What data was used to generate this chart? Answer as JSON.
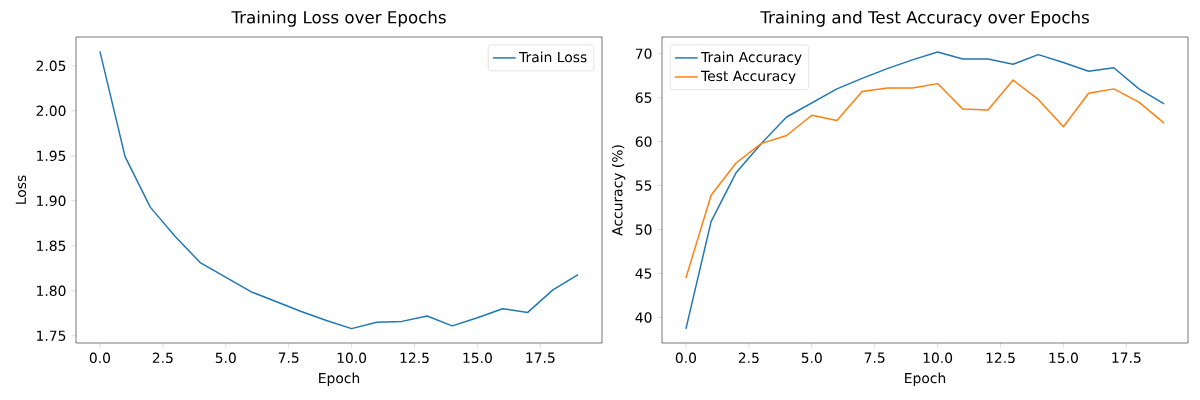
{
  "chart_data": [
    {
      "type": "line",
      "title": "Training Loss over Epochs",
      "xlabel": "Epoch",
      "ylabel": "Loss",
      "x": [
        0,
        1,
        2,
        3,
        4,
        5,
        6,
        7,
        8,
        9,
        10,
        11,
        12,
        13,
        14,
        15,
        16,
        17,
        18,
        19
      ],
      "series": [
        {
          "name": "Train Loss",
          "color": "#1f77b4",
          "values": [
            2.066,
            1.949,
            1.893,
            1.86,
            1.831,
            1.815,
            1.799,
            1.788,
            1.777,
            1.767,
            1.758,
            1.765,
            1.766,
            1.772,
            1.761,
            1.77,
            1.78,
            1.776,
            1.801,
            1.818
          ]
        }
      ],
      "xlim": [
        -0.95,
        19.95
      ],
      "ylim": [
        1.742,
        2.082
      ],
      "xticks": [
        {
          "value": 0,
          "label": "0.0"
        },
        {
          "value": 2.5,
          "label": "2.5"
        },
        {
          "value": 5,
          "label": "5.0"
        },
        {
          "value": 7.5,
          "label": "7.5"
        },
        {
          "value": 10,
          "label": "10.0"
        },
        {
          "value": 12.5,
          "label": "12.5"
        },
        {
          "value": 15,
          "label": "15.0"
        },
        {
          "value": 17.5,
          "label": "17.5"
        }
      ],
      "yticks": [
        1.75,
        {
          "value": 1.8,
          "label": "1.80"
        },
        1.85,
        {
          "value": 1.9,
          "label": "1.90"
        },
        1.95,
        {
          "value": 2.0,
          "label": "2.00"
        },
        2.05
      ],
      "legend": "top right",
      "grid": false
    },
    {
      "type": "line",
      "title": "Training and Test Accuracy over Epochs",
      "xlabel": "Epoch",
      "ylabel": "Accuracy (%)",
      "x": [
        0,
        1,
        2,
        3,
        4,
        5,
        6,
        7,
        8,
        9,
        10,
        11,
        12,
        13,
        14,
        15,
        16,
        17,
        18,
        19
      ],
      "series": [
        {
          "name": "Train Accuracy",
          "color": "#1f77b4",
          "values": [
            38.7,
            50.9,
            56.5,
            59.8,
            62.8,
            64.4,
            66.0,
            67.2,
            68.3,
            69.3,
            70.2,
            69.4,
            69.4,
            68.8,
            69.9,
            69.0,
            68.0,
            68.4,
            66.0,
            64.3
          ]
        },
        {
          "name": "Test Accuracy",
          "color": "#ff7f0e",
          "values": [
            44.5,
            53.9,
            57.6,
            59.8,
            60.7,
            63.0,
            62.4,
            65.7,
            66.1,
            66.1,
            66.6,
            63.7,
            63.6,
            67.0,
            64.8,
            61.7,
            65.5,
            66.0,
            64.5,
            62.1
          ]
        }
      ],
      "xlim": [
        -0.95,
        19.95
      ],
      "ylim": [
        37.1,
        71.9
      ],
      "xticks": [
        {
          "value": 0,
          "label": "0.0"
        },
        {
          "value": 2.5,
          "label": "2.5"
        },
        {
          "value": 5,
          "label": "5.0"
        },
        {
          "value": 7.5,
          "label": "7.5"
        },
        {
          "value": 10,
          "label": "10.0"
        },
        {
          "value": 12.5,
          "label": "12.5"
        },
        {
          "value": 15,
          "label": "15.0"
        },
        {
          "value": 17.5,
          "label": "17.5"
        }
      ],
      "yticks": [
        40,
        45,
        50,
        55,
        60,
        65,
        70
      ],
      "legend": "top left",
      "grid": false
    }
  ]
}
